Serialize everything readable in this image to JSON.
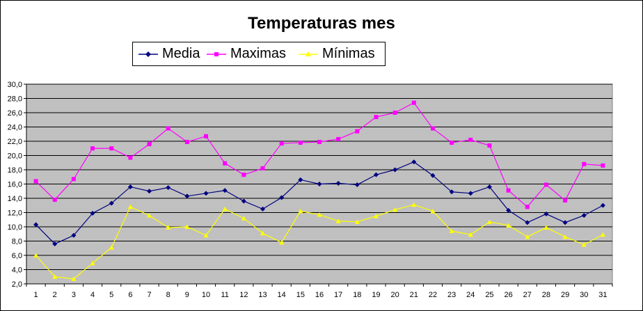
{
  "chart_data": {
    "type": "line",
    "title": "Temperaturas mes",
    "xlabel": "",
    "ylabel": "",
    "ylim": [
      2.0,
      30.0
    ],
    "ytick_step": 2.0,
    "yticks": [
      "2,0",
      "4,0",
      "6,0",
      "8,0",
      "10,0",
      "12,0",
      "14,0",
      "16,0",
      "18,0",
      "20,0",
      "22,0",
      "24,0",
      "26,0",
      "28,0",
      "30,0"
    ],
    "categories": [
      "1",
      "2",
      "3",
      "4",
      "5",
      "6",
      "7",
      "8",
      "9",
      "10",
      "11",
      "12",
      "13",
      "14",
      "15",
      "16",
      "17",
      "18",
      "19",
      "20",
      "21",
      "22",
      "23",
      "24",
      "25",
      "26",
      "27",
      "28",
      "29",
      "30",
      "31"
    ],
    "grid": true,
    "legend_position": "top",
    "plot_background": "#c0c0c0",
    "series": [
      {
        "name": "Media",
        "color": "#000080",
        "marker": "diamond",
        "values": [
          10.3,
          7.6,
          8.8,
          11.9,
          13.3,
          15.6,
          15.0,
          15.5,
          14.3,
          14.7,
          15.1,
          13.6,
          12.5,
          14.1,
          16.6,
          16.0,
          16.1,
          15.9,
          17.3,
          18.0,
          19.1,
          17.2,
          14.9,
          14.7,
          15.6,
          12.3,
          10.6,
          11.8,
          10.6,
          11.6,
          13.0
        ]
      },
      {
        "name": "Maximas",
        "color": "#ff00ff",
        "marker": "square",
        "values": [
          16.4,
          13.8,
          16.7,
          21.0,
          21.0,
          19.7,
          21.6,
          23.8,
          21.9,
          22.7,
          18.9,
          17.3,
          18.2,
          21.7,
          21.8,
          21.9,
          22.3,
          23.4,
          25.4,
          26.0,
          27.4,
          23.8,
          21.8,
          22.2,
          21.4,
          15.1,
          12.8,
          15.9,
          13.7,
          18.8,
          18.6
        ]
      },
      {
        "name": "Mínimas",
        "color": "#ffff00",
        "marker": "triangle",
        "values": [
          6.0,
          3.0,
          2.7,
          4.9,
          7.1,
          12.8,
          11.6,
          9.9,
          10.0,
          8.8,
          12.5,
          11.2,
          9.1,
          7.8,
          12.2,
          11.7,
          10.8,
          10.7,
          11.5,
          12.4,
          13.1,
          12.2,
          9.4,
          8.9,
          10.7,
          10.2,
          8.6,
          9.9,
          8.6,
          7.5,
          8.9
        ]
      }
    ]
  }
}
